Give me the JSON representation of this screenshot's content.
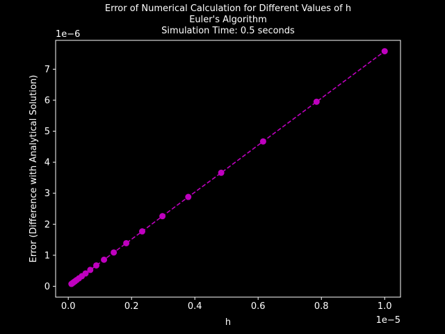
{
  "chart_data": {
    "type": "line",
    "title_lines": [
      "Error of Numerical Calculation for Different Values of h",
      "Euler's Algorithm",
      "Simulation Time: 0.5 seconds"
    ],
    "xlabel": "h",
    "ylabel": "Error (Difference with Analytical Solution)",
    "x_offset_label": "1e−5",
    "y_offset_label": "1e−6",
    "x_scale": 1e-05,
    "y_scale": 1e-06,
    "xlim": [
      -4e-07,
      1.05e-05
    ],
    "ylim": [
      -3.5e-07,
      7.93e-06
    ],
    "x_ticks": [
      0.0,
      0.2,
      0.4,
      0.6,
      0.8,
      1.0
    ],
    "x_tick_labels": [
      "0.0",
      "0.2",
      "0.4",
      "0.6",
      "0.8",
      "1.0"
    ],
    "y_ticks": [
      0,
      1,
      2,
      3,
      4,
      5,
      6,
      7
    ],
    "y_tick_labels": [
      "0",
      "1",
      "2",
      "3",
      "4",
      "5",
      "6",
      "7"
    ],
    "grid": false,
    "series": [
      {
        "color": "#bf00bf",
        "line_style": "dashed",
        "marker": "circle",
        "x": [
          1e-07,
          1.27e-07,
          1.62e-07,
          2.07e-07,
          2.64e-07,
          3.36e-07,
          4.28e-07,
          5.46e-07,
          6.95e-07,
          8.86e-07,
          1.129e-06,
          1.438e-06,
          1.833e-06,
          2.336e-06,
          2.976e-06,
          3.793e-06,
          4.833e-06,
          6.158e-06,
          7.848e-06,
          1e-05
        ],
        "y": [
          7.6e-08,
          9.6e-08,
          1.23e-07,
          1.57e-07,
          2e-07,
          2.55e-07,
          3.25e-07,
          4.14e-07,
          5.27e-07,
          6.72e-07,
          8.56e-07,
          1.09e-06,
          1.39e-06,
          1.77e-06,
          2.26e-06,
          2.88e-06,
          3.66e-06,
          4.67e-06,
          5.95e-06,
          7.58e-06
        ]
      }
    ]
  }
}
